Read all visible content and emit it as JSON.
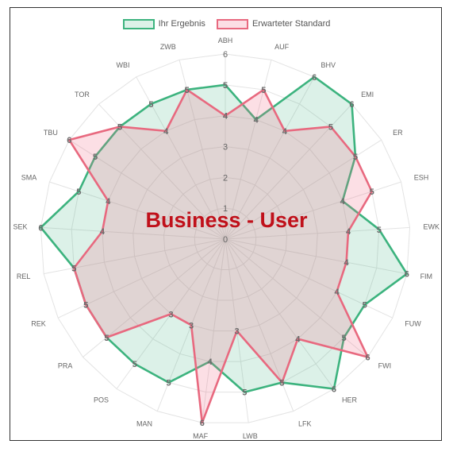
{
  "chart_data": {
    "type": "radar",
    "title": "Business - User",
    "legend_position": "top",
    "grid": true,
    "rlim": [
      0,
      6
    ],
    "ticks": [
      "0",
      "1",
      "2",
      "3",
      "4",
      "5",
      "6"
    ],
    "categories": [
      "ABH",
      "AUF",
      "BHV",
      "EMI",
      "ER",
      "ESH",
      "EWK",
      "FIM",
      "FUW",
      "FWI",
      "HER",
      "LFK",
      "LWB",
      "MAF",
      "MAN",
      "POS",
      "PRA",
      "REK",
      "REL",
      "SEK",
      "SMA",
      "TBU",
      "TOR",
      "WBI",
      "ZWB"
    ],
    "series": [
      {
        "name": "Ihr Ergebnis",
        "color": "#3cb37e",
        "fill": "rgba(60,179,126,0.18)",
        "values": [
          5,
          4,
          6,
          6,
          5,
          4,
          5,
          6,
          5,
          5,
          6,
          5,
          5,
          4,
          5,
          5,
          5,
          5,
          5,
          6,
          5,
          5,
          5,
          5,
          5
        ]
      },
      {
        "name": "Erwarteter Standard",
        "color": "#e8697f",
        "fill": "rgba(240,110,135,0.22)",
        "values": [
          4,
          5,
          4,
          5,
          5,
          5,
          4,
          4,
          4,
          6,
          4,
          5,
          3,
          6,
          3,
          3,
          5,
          5,
          5,
          4,
          4,
          6,
          5,
          4,
          5
        ]
      }
    ]
  }
}
